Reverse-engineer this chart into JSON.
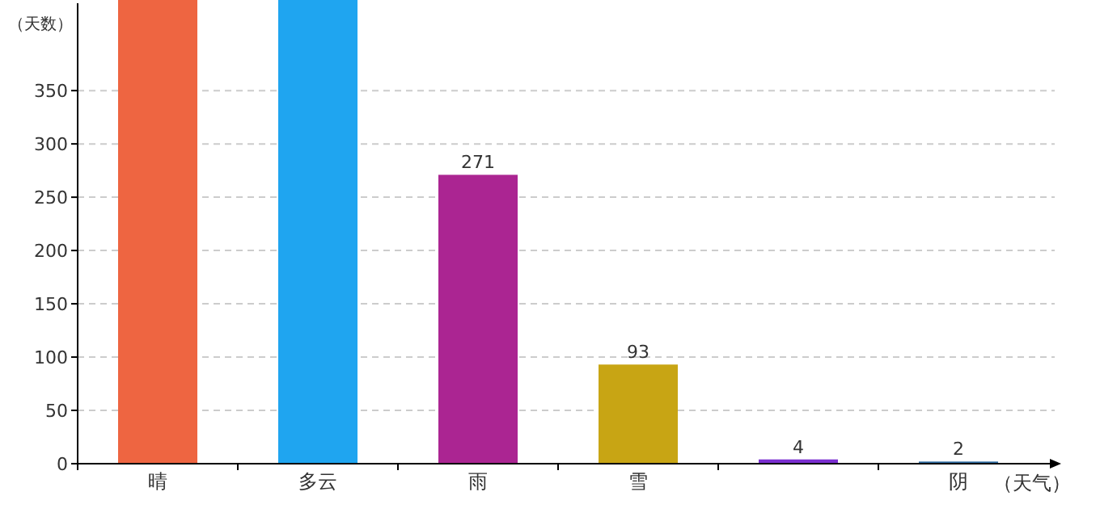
{
  "chart_data": {
    "type": "bar",
    "ylabel": "（天数）",
    "xlabel": "（天气）",
    "categories": [
      "晴",
      "多云",
      "雨",
      "雪",
      null,
      "阴"
    ],
    "values": [
      435,
      435,
      271,
      93,
      4,
      2
    ],
    "colors": [
      "#ee6541",
      "#1fa5f0",
      "#ab2592",
      "#c8a514",
      "#7a2ed0",
      "#2d6ba1"
    ],
    "value_labels": [
      null,
      null,
      "271",
      "93",
      "4",
      "2"
    ],
    "ylim": [
      0,
      435
    ],
    "yticks": [
      0,
      50,
      100,
      150,
      200,
      250,
      300,
      350
    ],
    "grid": "y"
  }
}
